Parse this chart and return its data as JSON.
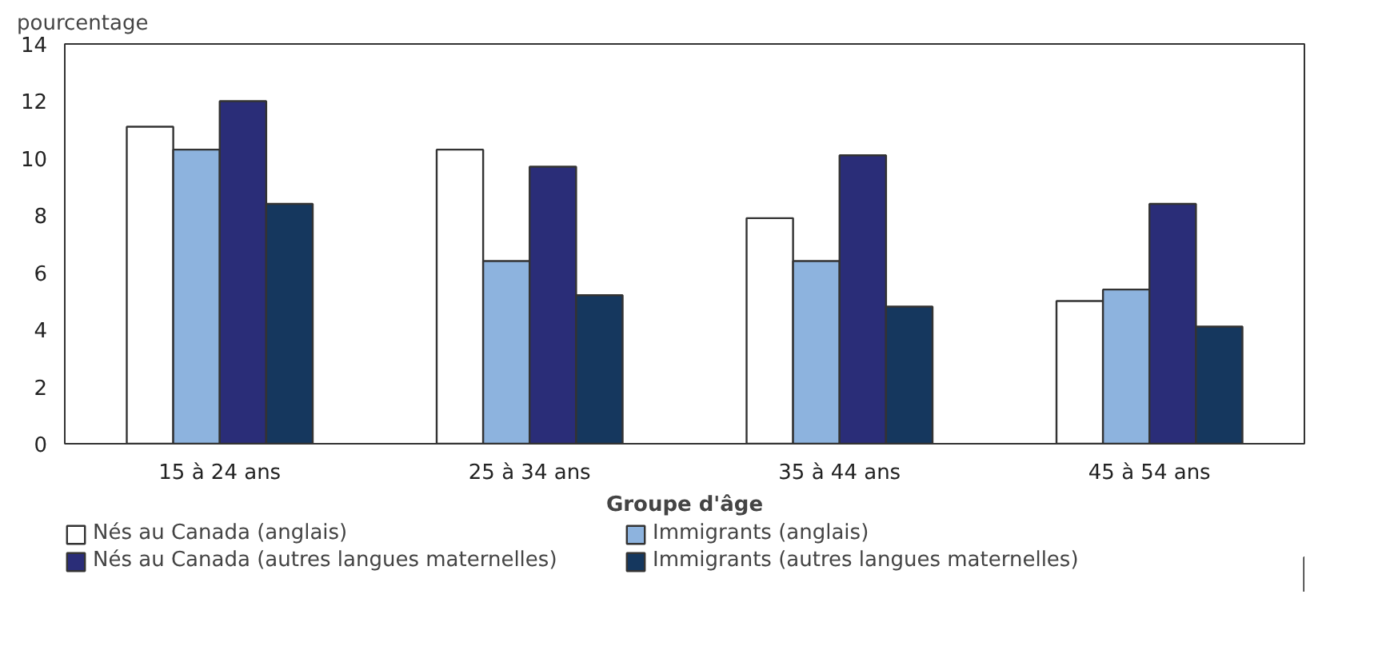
{
  "chart_data": {
    "type": "bar",
    "ylabel": "pourcentage",
    "xlabel": "Groupe d'âge",
    "categories": [
      "15 à 24 ans",
      "25 à 34 ans",
      "35 à 44 ans",
      "45 à 54 ans"
    ],
    "series": [
      {
        "name": "Nés au Canada (anglais)",
        "color": "#ffffff",
        "values": [
          11.1,
          10.3,
          7.9,
          5.0
        ]
      },
      {
        "name": "Immigrants (anglais)",
        "color": "#8db3de",
        "values": [
          10.3,
          6.4,
          6.4,
          5.4
        ]
      },
      {
        "name": "Nés au Canada (autres langues maternelles)",
        "color": "#2a2d78",
        "values": [
          12.0,
          9.7,
          10.1,
          8.4
        ]
      },
      {
        "name": "Immigrants (autres langues maternelles)",
        "color": "#15375e",
        "values": [
          8.4,
          5.2,
          4.8,
          4.1
        ]
      }
    ],
    "ylim": [
      0,
      14
    ],
    "yticks": [
      0,
      2,
      4,
      6,
      8,
      10,
      12,
      14
    ],
    "grid": false,
    "legend": "bottom"
  }
}
